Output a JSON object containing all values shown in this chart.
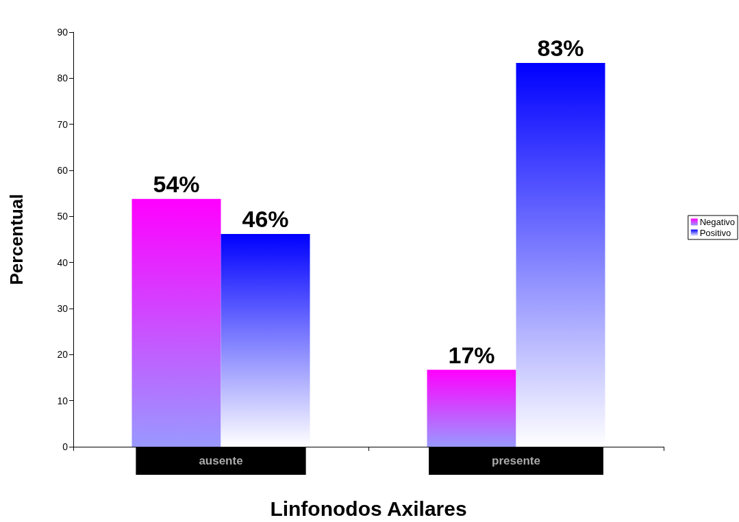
{
  "chart_data": {
    "type": "bar",
    "xlabel": "Linfonodos Axilares",
    "ylabel": "Percentual",
    "categories": [
      "ausente",
      "presente"
    ],
    "series": [
      {
        "name": "Negativo",
        "color": "#ff00ff",
        "values": [
          53.8,
          16.7
        ],
        "value_labels": [
          "54%",
          "17%"
        ]
      },
      {
        "name": "Positivo",
        "color": "#0000ff",
        "values": [
          46.2,
          83.3
        ],
        "value_labels": [
          "46%",
          "83%"
        ]
      }
    ],
    "ylim": [
      0,
      90
    ],
    "yticks": [
      0,
      10,
      20,
      30,
      40,
      50,
      60,
      70,
      80,
      90
    ],
    "grid": false,
    "legend": "right"
  }
}
